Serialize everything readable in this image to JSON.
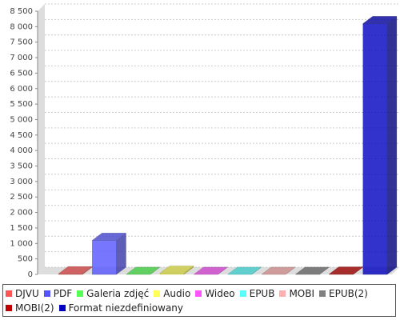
{
  "chart_data": {
    "type": "bar3d",
    "ylim": [
      0,
      8500
    ],
    "yticks": [
      0,
      500,
      {
        "value": 1000,
        "label": "1 000"
      },
      {
        "value": 1500,
        "label": "1 500"
      },
      {
        "value": 2000,
        "label": "2 000"
      },
      {
        "value": 2500,
        "label": "2 500"
      },
      {
        "value": 3000,
        "label": "3 000"
      },
      {
        "value": 3500,
        "label": "3 500"
      },
      {
        "value": 4000,
        "label": "4 000"
      },
      {
        "value": 4500,
        "label": "4 500"
      },
      {
        "value": 5000,
        "label": "5 000"
      },
      {
        "value": 5500,
        "label": "5 500"
      },
      {
        "value": 6000,
        "label": "6 000"
      },
      {
        "value": 6500,
        "label": "6 500"
      },
      {
        "value": 7000,
        "label": "7 000"
      },
      {
        "value": 7500,
        "label": "7 500"
      },
      {
        "value": 8000,
        "label": "8 000"
      },
      {
        "value": 8500,
        "label": "8 500"
      }
    ],
    "grid": true,
    "series": [
      {
        "name": "DJVU",
        "color": "#ff5555",
        "values": [
          20
        ]
      },
      {
        "name": "PDF",
        "color": "#5555ff",
        "values": [
          1100
        ]
      },
      {
        "name": "Galeria zdjęć",
        "color": "#55ff55",
        "values": [
          0
        ]
      },
      {
        "name": "Audio",
        "color": "#ffff55",
        "values": [
          40
        ]
      },
      {
        "name": "Wideo",
        "color": "#ff55ff",
        "values": [
          0
        ]
      },
      {
        "name": "EPUB",
        "color": "#55ffff",
        "values": [
          0
        ]
      },
      {
        "name": "MOBI",
        "color": "#ffafaf",
        "values": [
          0
        ]
      },
      {
        "name": "EPUB(2)",
        "color": "#808080",
        "values": [
          0
        ]
      },
      {
        "name": "MOBI(2)",
        "color": "#c00000",
        "values": [
          10
        ]
      },
      {
        "name": "Format niezdefiniowany",
        "color": "#0000c0",
        "values": [
          8100
        ]
      }
    ]
  }
}
